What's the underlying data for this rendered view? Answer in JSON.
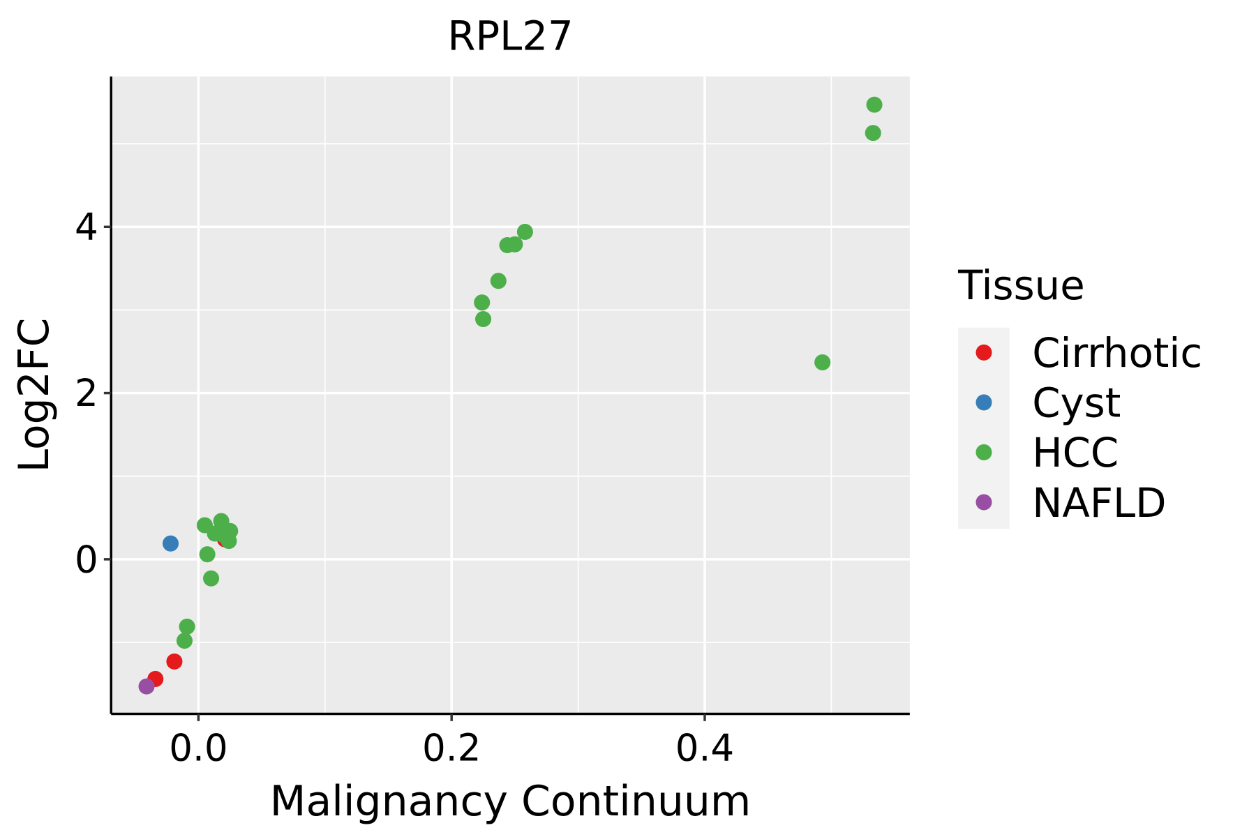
{
  "chart_data": {
    "type": "scatter",
    "title": "RPL27",
    "xlabel": "Malignancy Continuum",
    "ylabel": "Log2FC",
    "xlim": [
      -0.069,
      0.562
    ],
    "ylim": [
      -1.86,
      5.81
    ],
    "xticks": [
      0.0,
      0.2,
      0.4
    ],
    "xtick_labels": [
      "0.0",
      "0.2",
      "0.4"
    ],
    "xminor": [
      0.1,
      0.3,
      0.5
    ],
    "yticks": [
      0,
      2,
      4
    ],
    "ytick_labels": [
      "0",
      "2",
      "4"
    ],
    "yminor": [
      -1,
      1,
      3,
      5
    ],
    "grid": true,
    "legend": {
      "title": "Tissue",
      "placement": "right"
    },
    "series": [
      {
        "name": "Cirrhotic",
        "color": "#E41A1C",
        "points": [
          [
            0.021,
            0.24
          ],
          [
            -0.019,
            -1.23
          ],
          [
            -0.034,
            -1.44
          ]
        ]
      },
      {
        "name": "Cyst",
        "color": "#377EB8",
        "points": [
          [
            -0.022,
            0.19
          ]
        ]
      },
      {
        "name": "HCC",
        "color": "#4DAF4A",
        "points": [
          [
            0.534,
            5.47
          ],
          [
            0.533,
            5.13
          ],
          [
            0.493,
            2.37
          ],
          [
            0.258,
            3.94
          ],
          [
            0.25,
            3.79
          ],
          [
            0.244,
            3.78
          ],
          [
            0.237,
            3.35
          ],
          [
            0.224,
            3.09
          ],
          [
            0.225,
            2.89
          ],
          [
            0.005,
            0.41
          ],
          [
            0.018,
            0.46
          ],
          [
            0.013,
            0.31
          ],
          [
            0.025,
            0.34
          ],
          [
            0.024,
            0.22
          ],
          [
            0.02,
            0.29
          ],
          [
            0.007,
            0.06
          ],
          [
            0.01,
            -0.23
          ],
          [
            -0.009,
            -0.81
          ],
          [
            -0.011,
            -0.98
          ]
        ]
      },
      {
        "name": "NAFLD",
        "color": "#984EA3",
        "points": [
          [
            -0.041,
            -1.53
          ]
        ]
      }
    ]
  }
}
